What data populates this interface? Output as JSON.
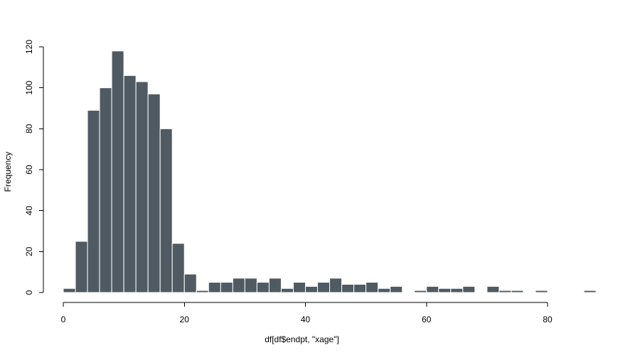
{
  "chart_data": {
    "type": "bar",
    "title": "",
    "xlabel": "df[df$endpt, \"xage\"]",
    "ylabel": "Frequency",
    "xlim": [
      0,
      80
    ],
    "ylim": [
      0,
      120
    ],
    "xticks": [
      0,
      20,
      40,
      60,
      80
    ],
    "yticks": [
      0,
      20,
      40,
      60,
      80,
      100,
      120
    ],
    "grid": false,
    "bin_width": 2,
    "bins_start": [
      0,
      2,
      4,
      6,
      8,
      10,
      12,
      14,
      16,
      18,
      20,
      22,
      24,
      26,
      28,
      30,
      32,
      34,
      36,
      38,
      40,
      42,
      44,
      46,
      48,
      50,
      52,
      54,
      56,
      58,
      60,
      62,
      64,
      66,
      68,
      70,
      72,
      74,
      76,
      78,
      80,
      82,
      84,
      86
    ],
    "values": [
      2,
      25,
      89,
      100,
      118,
      106,
      103,
      97,
      80,
      24,
      9,
      1,
      5,
      5,
      7,
      7,
      5,
      7,
      2,
      5,
      3,
      5,
      7,
      4,
      4,
      5,
      2,
      3,
      0,
      1,
      3,
      2,
      2,
      3,
      0,
      3,
      1,
      1,
      0,
      1,
      0,
      0,
      0,
      1
    ],
    "colors": {
      "bar_fill": "#4f5a63",
      "bar_stroke": "#ffffff"
    }
  }
}
